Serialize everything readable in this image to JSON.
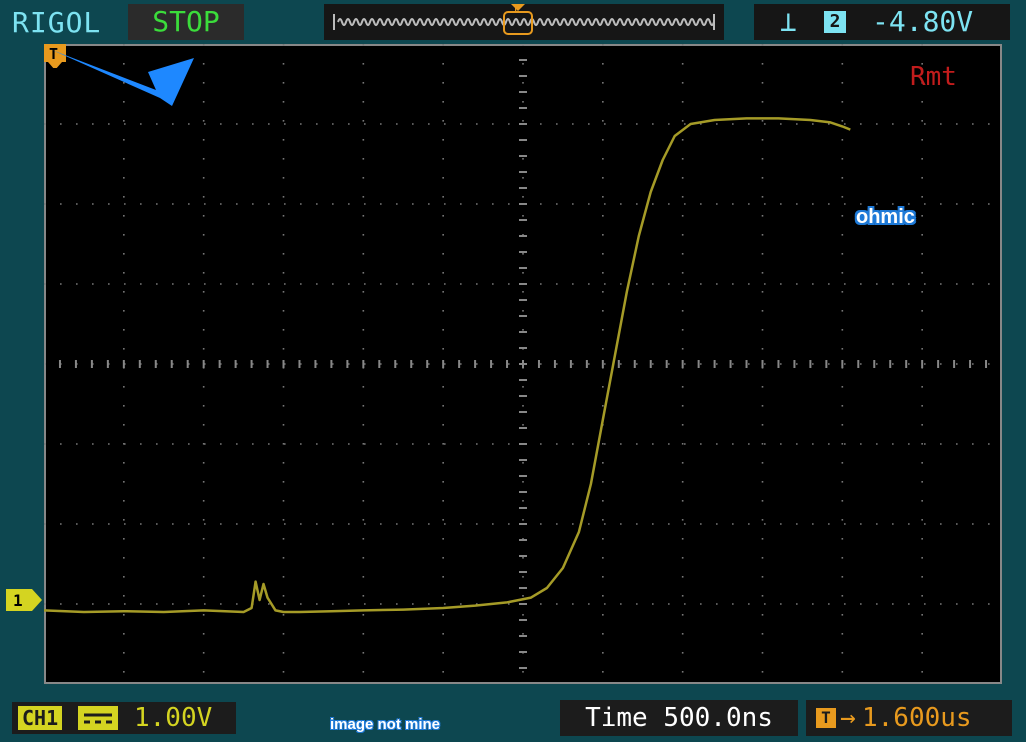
{
  "header": {
    "brand": "RIGOL",
    "run_state": "STOP",
    "trigger": {
      "edge_glyph": "⊥",
      "source": "2",
      "level": "-4.80V"
    }
  },
  "screen": {
    "remote_indicator": "Rmt",
    "trigger_marker": "T",
    "annotation_label": "ohmic",
    "grid": {
      "h_divs": 12,
      "v_divs": 8
    },
    "trace": {
      "color": "#a59b27",
      "points": [
        [
          0,
          7.08
        ],
        [
          0.5,
          7.1
        ],
        [
          1.0,
          7.09
        ],
        [
          1.5,
          7.1
        ],
        [
          2.0,
          7.08
        ],
        [
          2.5,
          7.1
        ],
        [
          2.6,
          7.05
        ],
        [
          2.65,
          6.72
        ],
        [
          2.7,
          6.95
        ],
        [
          2.75,
          6.75
        ],
        [
          2.8,
          6.92
        ],
        [
          2.9,
          7.08
        ],
        [
          3.0,
          7.1
        ],
        [
          3.2,
          7.1
        ],
        [
          3.6,
          7.09
        ],
        [
          4.0,
          7.08
        ],
        [
          4.5,
          7.07
        ],
        [
          5.0,
          7.05
        ],
        [
          5.4,
          7.02
        ],
        [
          5.8,
          6.98
        ],
        [
          6.1,
          6.92
        ],
        [
          6.3,
          6.8
        ],
        [
          6.5,
          6.55
        ],
        [
          6.7,
          6.1
        ],
        [
          6.85,
          5.5
        ],
        [
          7.0,
          4.7
        ],
        [
          7.15,
          3.9
        ],
        [
          7.3,
          3.1
        ],
        [
          7.45,
          2.4
        ],
        [
          7.6,
          1.85
        ],
        [
          7.75,
          1.45
        ],
        [
          7.9,
          1.15
        ],
        [
          8.1,
          1.0
        ],
        [
          8.4,
          0.95
        ],
        [
          8.8,
          0.93
        ],
        [
          9.2,
          0.93
        ],
        [
          9.6,
          0.95
        ],
        [
          9.85,
          0.98
        ],
        [
          10.0,
          1.03
        ],
        [
          10.1,
          1.07
        ]
      ]
    }
  },
  "channel": {
    "name": "CH1",
    "marker": "1",
    "scale": "1.00V"
  },
  "credit": "image not mine",
  "timebase": "Time 500.0ns",
  "delay": {
    "icon": "T",
    "arrow": "→",
    "value": "1.600us"
  },
  "colors": {
    "frame": "#0d4750",
    "brand": "#7de3f2",
    "run_state": "#3bdc3b",
    "channel": "#d4d421",
    "delay": "#e89a1e",
    "annotation": "#1e7ad8",
    "remote": "#c21c1c"
  }
}
